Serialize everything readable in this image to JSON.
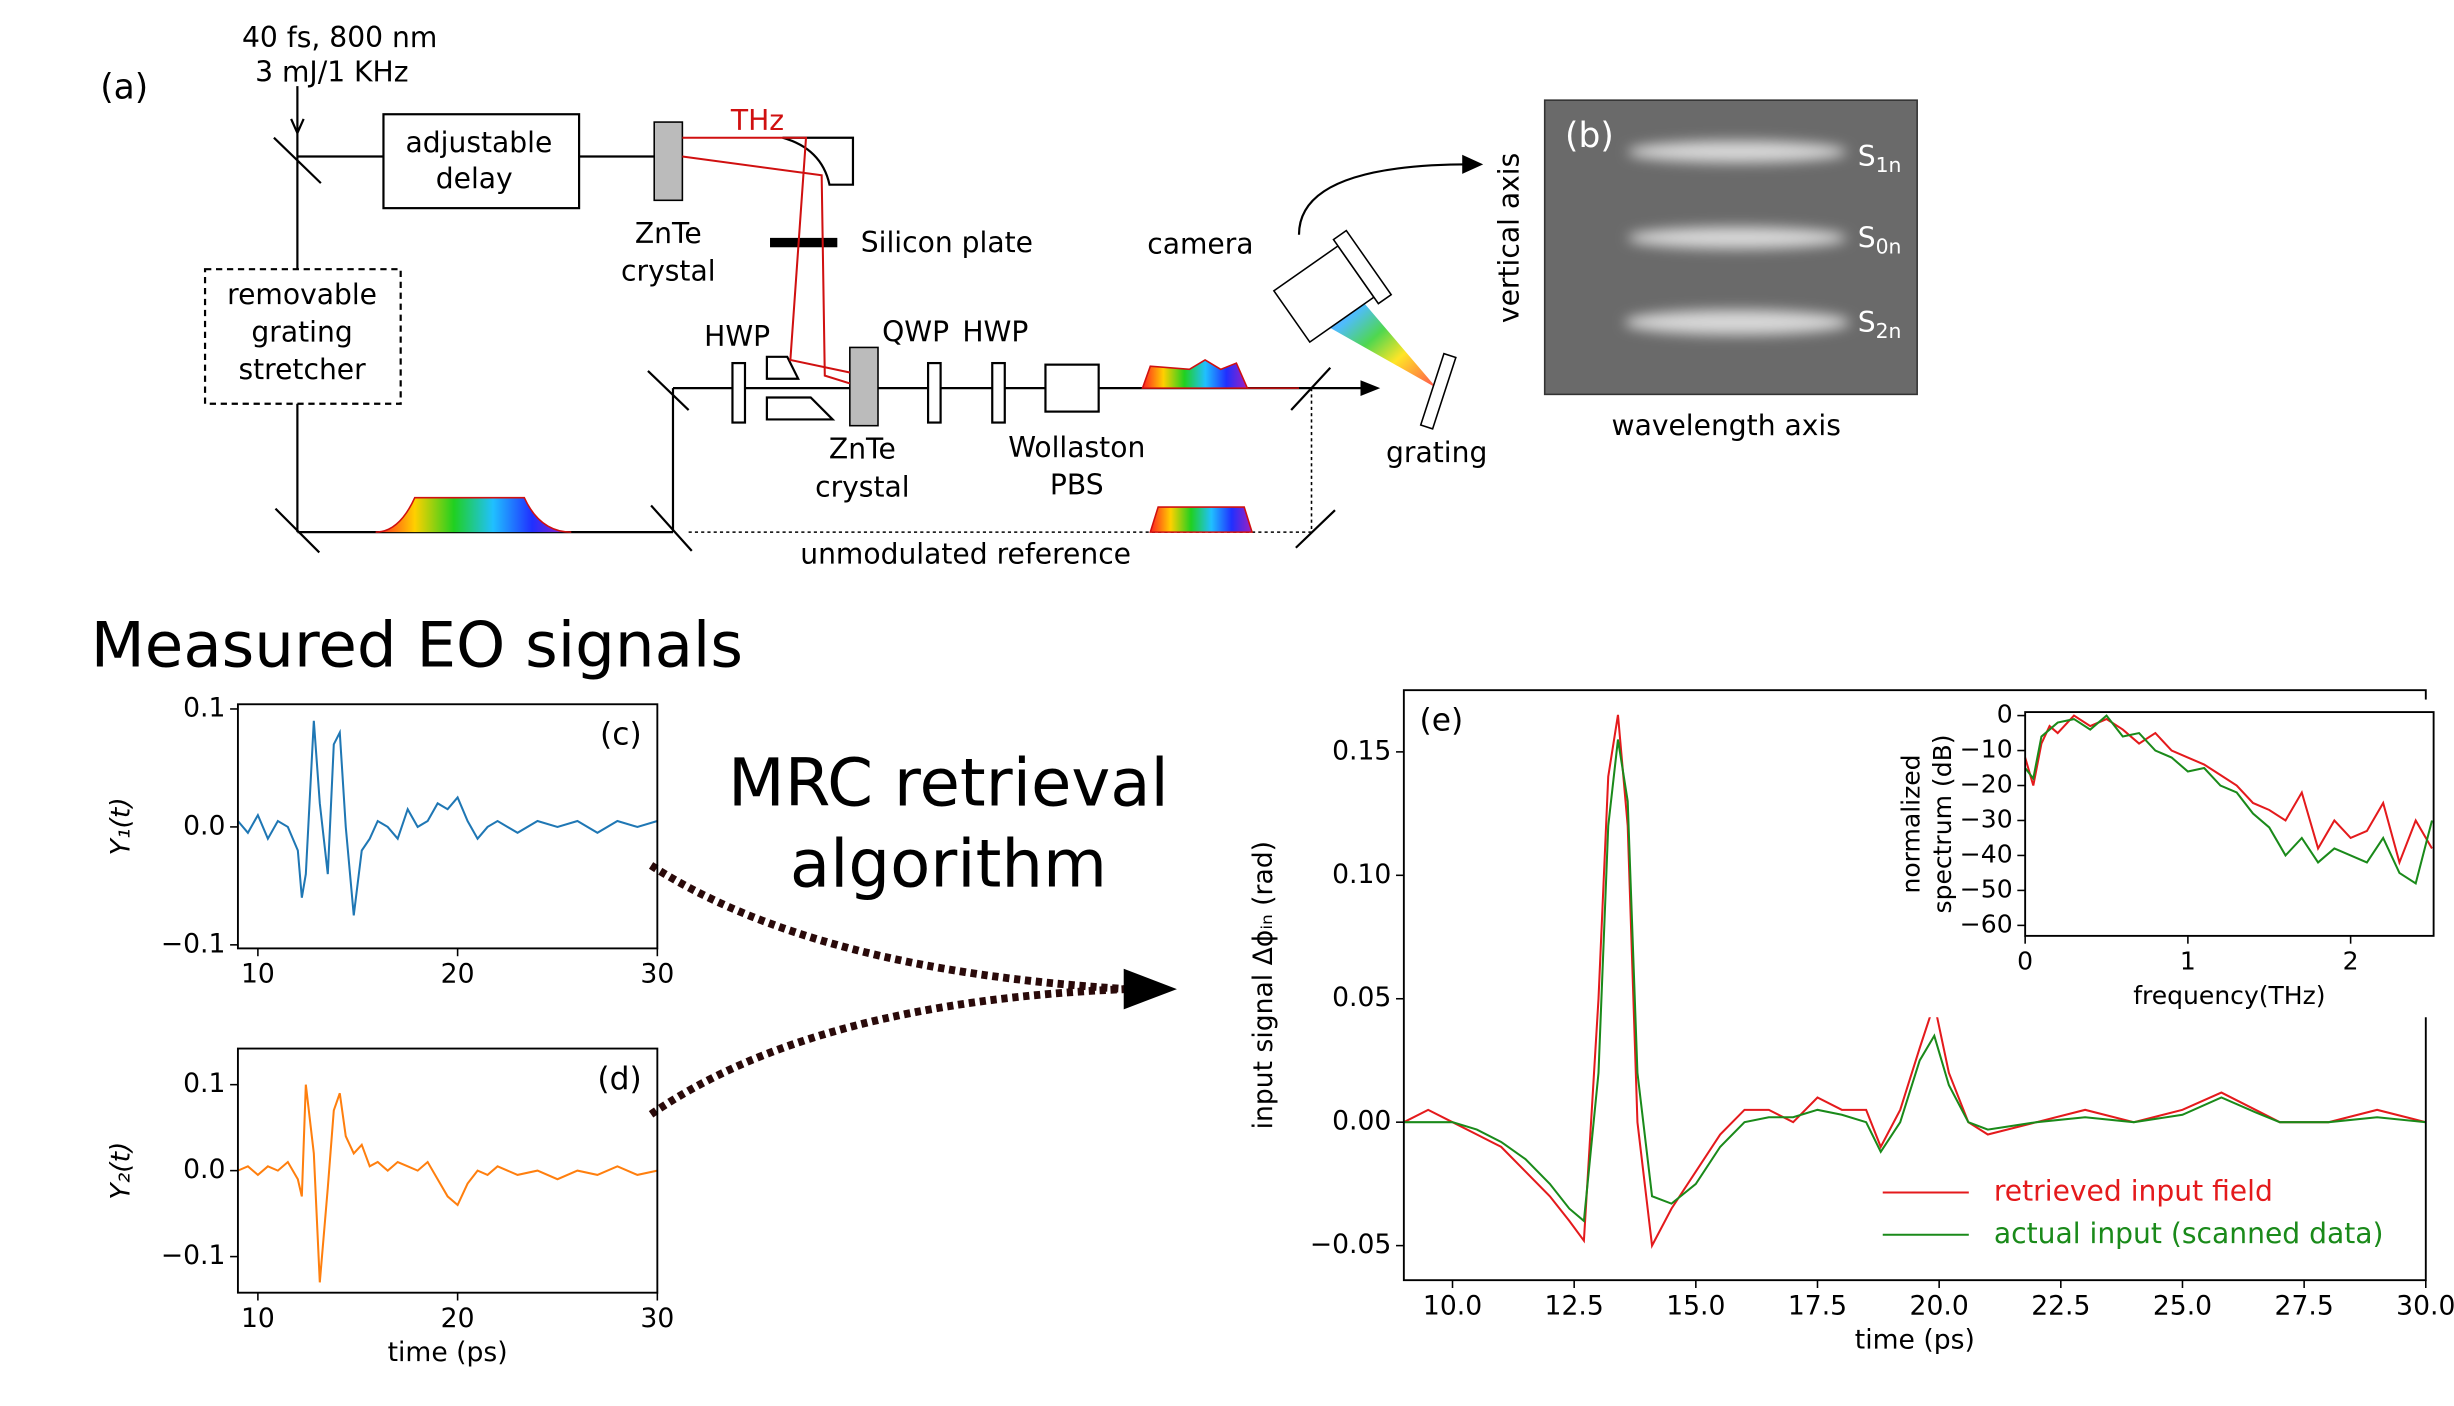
{
  "diagram": {
    "panel_a": "(a)",
    "laser_line1": "40 fs, 800 nm",
    "laser_line2": "3 mJ/1 KHz",
    "delay": [
      "adjustable",
      "delay"
    ],
    "thz": "THz",
    "znte_top": [
      "ZnTe",
      "crystal"
    ],
    "silicon": "Silicon plate",
    "camera": "camera",
    "stretcher": [
      "removable",
      "grating",
      "stretcher"
    ],
    "hwp1": "HWP",
    "qwp": "QWP",
    "hwp2": "HWP",
    "znte_bottom": [
      "ZnTe",
      "crystal"
    ],
    "wollaston": [
      "Wollaston",
      "PBS"
    ],
    "grating": "grating",
    "reference": "unmodulated reference",
    "panel_b": "(b)",
    "vertical_axis": "vertical axis",
    "wavelength_axis": "wavelength axis",
    "s_labels": [
      {
        "main": "S",
        "sub": "1n"
      },
      {
        "main": "S",
        "sub": "0n"
      },
      {
        "main": "S",
        "sub": "2n"
      }
    ],
    "measured": "Measured EO signals",
    "mrc": [
      "MRC retrieval",
      "algorithm"
    ]
  },
  "chart_data": [
    {
      "type": "line",
      "label": "(c)",
      "y_label": "Y₁(t)",
      "color": "#1f77b4",
      "x": [
        9,
        9.5,
        10,
        10.5,
        11,
        11.5,
        12,
        12.2,
        12.4,
        12.8,
        13.1,
        13.5,
        13.8,
        14.1,
        14.4,
        14.8,
        15.2,
        15.6,
        16,
        16.5,
        17,
        17.5,
        18,
        18.5,
        19,
        19.5,
        20,
        20.5,
        21,
        21.5,
        22,
        23,
        24,
        25,
        26,
        27,
        28,
        29,
        30
      ],
      "values": [
        0.005,
        -0.005,
        0.01,
        -0.01,
        0.005,
        0.0,
        -0.02,
        -0.06,
        -0.04,
        0.09,
        0.02,
        -0.04,
        0.07,
        0.08,
        0.0,
        -0.075,
        -0.02,
        -0.01,
        0.005,
        0.0,
        -0.01,
        0.015,
        0.0,
        0.005,
        0.02,
        0.015,
        0.025,
        0.005,
        -0.01,
        0.0,
        0.005,
        -0.005,
        0.005,
        0.0,
        0.005,
        -0.005,
        0.005,
        0.0,
        0.005
      ],
      "xlim": [
        9,
        30
      ],
      "ylim": [
        -0.103,
        0.104
      ],
      "xticks": [
        10,
        20,
        30
      ],
      "yticks": [
        {
          "value": -0.1,
          "label": "−0.1"
        },
        {
          "value": 0,
          "label": "0.0"
        },
        0.1
      ]
    },
    {
      "type": "line",
      "label": "(d)",
      "y_label": "Y₂(t)",
      "x_label": "time (ps)",
      "color": "#ff7f0e",
      "x": [
        9,
        9.5,
        10,
        10.5,
        11,
        11.5,
        12,
        12.2,
        12.4,
        12.8,
        13.1,
        13.5,
        13.8,
        14.1,
        14.4,
        14.8,
        15.2,
        15.6,
        16,
        16.5,
        17,
        17.5,
        18,
        18.5,
        19,
        19.5,
        20,
        20.5,
        21,
        21.5,
        22,
        23,
        24,
        25,
        26,
        27,
        28,
        29,
        30
      ],
      "values": [
        0.0,
        0.005,
        -0.005,
        0.005,
        0.0,
        0.01,
        -0.01,
        -0.03,
        0.1,
        0.02,
        -0.13,
        -0.02,
        0.07,
        0.09,
        0.04,
        0.02,
        0.03,
        0.005,
        0.01,
        0.0,
        0.01,
        0.005,
        0.0,
        0.01,
        -0.01,
        -0.03,
        -0.04,
        -0.015,
        0.0,
        -0.005,
        0.005,
        -0.005,
        0.0,
        -0.01,
        0.0,
        -0.005,
        0.005,
        -0.005,
        0.0
      ],
      "xlim": [
        9,
        30
      ],
      "ylim": [
        -0.142,
        0.142
      ],
      "xticks": [
        10,
        20,
        30
      ],
      "yticks": [
        {
          "value": -0.1,
          "label": "−0.1"
        },
        {
          "value": 0,
          "label": "0.0"
        },
        0.1
      ]
    },
    {
      "type": "line",
      "label": "(e)",
      "y_label": "input signal Δϕᵢₙ (rad)",
      "x_label": "time (ps)",
      "x": [
        9,
        9.5,
        10,
        10.5,
        11,
        11.5,
        12,
        12.4,
        12.7,
        13.0,
        13.2,
        13.4,
        13.6,
        13.8,
        14.1,
        14.5,
        15.0,
        15.5,
        16,
        16.5,
        17,
        17.5,
        18,
        18.5,
        18.8,
        19.2,
        19.6,
        19.9,
        20.2,
        20.6,
        21,
        22,
        23,
        24,
        25,
        25.8,
        26.5,
        27,
        28,
        29,
        30
      ],
      "series": [
        {
          "name": "retrieved input field",
          "color": "#e41a1c",
          "values": [
            0.0,
            0.005,
            0.0,
            -0.005,
            -0.01,
            -0.02,
            -0.03,
            -0.04,
            -0.048,
            0.05,
            0.14,
            0.165,
            0.12,
            0.0,
            -0.05,
            -0.035,
            -0.02,
            -0.005,
            0.005,
            0.005,
            0.0,
            0.01,
            0.005,
            0.005,
            -0.01,
            0.005,
            0.03,
            0.048,
            0.02,
            0.0,
            -0.005,
            0.0,
            0.005,
            0.0,
            0.005,
            0.012,
            0.005,
            0.0,
            0.0,
            0.005,
            0.0
          ]
        },
        {
          "name": "actual input (scanned data)",
          "color": "#1a8a1a",
          "values": [
            0.0,
            0.0,
            0.0,
            -0.003,
            -0.008,
            -0.015,
            -0.025,
            -0.035,
            -0.04,
            0.02,
            0.12,
            0.155,
            0.13,
            0.02,
            -0.03,
            -0.033,
            -0.025,
            -0.01,
            0.0,
            0.002,
            0.002,
            0.005,
            0.003,
            0.0,
            -0.012,
            0.0,
            0.025,
            0.035,
            0.015,
            0.0,
            -0.003,
            0.0,
            0.002,
            0.0,
            0.003,
            0.01,
            0.004,
            0.0,
            0.0,
            0.002,
            0.0
          ]
        }
      ],
      "xlim": [
        9,
        30
      ],
      "ylim": [
        -0.064,
        0.175
      ],
      "xticks": [
        {
          "value": 10,
          "label": "10.0"
        },
        12.5,
        {
          "value": 15,
          "label": "15.0"
        },
        17.5,
        {
          "value": 20,
          "label": "20.0"
        },
        22.5,
        {
          "value": 25,
          "label": "25.0"
        },
        27.5,
        {
          "value": 30,
          "label": "30.0"
        }
      ],
      "yticks": [
        {
          "value": -0.05,
          "label": "−0.05"
        },
        {
          "value": 0,
          "label": "0.00"
        },
        0.05,
        {
          "value": 0.1,
          "label": "0.10"
        },
        0.15
      ],
      "legend": "lower right"
    },
    {
      "type": "line",
      "y_label": [
        "normalized",
        "spectrum (dB)"
      ],
      "x_label": "frequency(THz)",
      "x": [
        0,
        0.05,
        0.1,
        0.15,
        0.2,
        0.3,
        0.4,
        0.5,
        0.6,
        0.7,
        0.8,
        0.9,
        1.0,
        1.1,
        1.2,
        1.3,
        1.4,
        1.5,
        1.6,
        1.7,
        1.8,
        1.9,
        2.0,
        2.1,
        2.2,
        2.3,
        2.4,
        2.5
      ],
      "series": [
        {
          "color": "#e41a1c",
          "values": [
            -12,
            -20,
            -8,
            -3,
            -5,
            0,
            -3,
            -1,
            -4,
            -8,
            -5,
            -10,
            -12,
            -14,
            -17,
            -20,
            -25,
            -27,
            -30,
            -22,
            -38,
            -30,
            -35,
            -33,
            -25,
            -42,
            -30,
            -38
          ]
        },
        {
          "color": "#1a8a1a",
          "values": [
            -15,
            -18,
            -6,
            -4,
            -2,
            -1,
            -4,
            0,
            -6,
            -5,
            -10,
            -12,
            -16,
            -15,
            -20,
            -22,
            -28,
            -32,
            -40,
            -35,
            -42,
            -38,
            -40,
            -42,
            -35,
            -45,
            -48,
            -30
          ]
        }
      ],
      "xlim": [
        0,
        2.51
      ],
      "ylim": [
        -63,
        1
      ],
      "xticks": [
        0,
        1,
        2
      ],
      "yticks": [
        {
          "value": -60,
          "label": "−60"
        },
        {
          "value": -50,
          "label": "−50"
        },
        {
          "value": -40,
          "label": "−40"
        },
        {
          "value": -30,
          "label": "−30"
        },
        {
          "value": -20,
          "label": "−20"
        },
        {
          "value": -10,
          "label": "−10"
        },
        0
      ]
    }
  ]
}
